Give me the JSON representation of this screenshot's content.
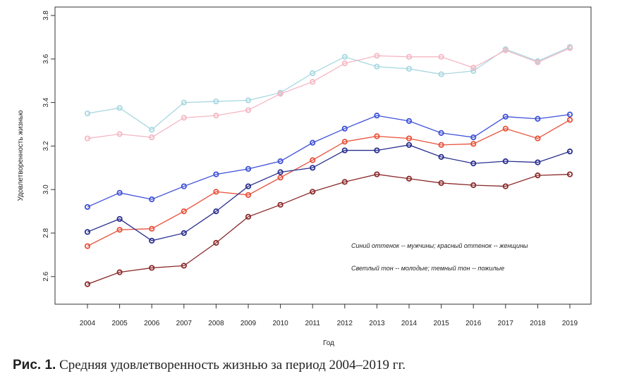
{
  "chart_data": {
    "type": "line",
    "xlabel": "Год",
    "ylabel": "Удовлетворенность жизнью",
    "ylim": [
      2.55,
      3.82
    ],
    "yticks": [
      "2.6",
      "2.8",
      "3.0",
      "3.2",
      "3.4",
      "3.6",
      "3.8"
    ],
    "x": [
      2004,
      2005,
      2006,
      2007,
      2008,
      2009,
      2010,
      2011,
      2012,
      2013,
      2014,
      2015,
      2016,
      2017,
      2018,
      2019
    ],
    "annotations": [
      "Синий оттенок -- мужчины; красный оттенок -- женщины",
      "Светлый тон -- молодые; темный тон -- пожилые"
    ],
    "grid": false,
    "series": [
      {
        "color": "#a8d8e0",
        "values": [
          3.35,
          3.375,
          3.275,
          3.4,
          3.405,
          3.41,
          3.445,
          3.535,
          3.61,
          3.565,
          3.555,
          3.53,
          3.545,
          3.645,
          3.59,
          3.655
        ]
      },
      {
        "color": "#f4b8c4",
        "values": [
          3.235,
          3.255,
          3.24,
          3.33,
          3.34,
          3.365,
          3.44,
          3.495,
          3.58,
          3.615,
          3.61,
          3.61,
          3.56,
          3.64,
          3.585,
          3.65
        ]
      },
      {
        "color": "#3f51d8",
        "values": [
          2.92,
          2.985,
          2.955,
          3.015,
          3.07,
          3.095,
          3.13,
          3.215,
          3.28,
          3.34,
          3.315,
          3.26,
          3.24,
          3.335,
          3.325,
          3.345
        ]
      },
      {
        "color": "#e8503a",
        "values": [
          2.74,
          2.815,
          2.82,
          2.9,
          2.99,
          2.975,
          3.055,
          3.135,
          3.22,
          3.245,
          3.235,
          3.205,
          3.21,
          3.28,
          3.235,
          3.32
        ]
      },
      {
        "color": "#2a2f8f",
        "values": [
          2.805,
          2.865,
          2.765,
          2.8,
          2.9,
          3.015,
          3.08,
          3.1,
          3.18,
          3.18,
          3.205,
          3.15,
          3.12,
          3.13,
          3.125,
          3.175
        ]
      },
      {
        "color": "#8b2a2a",
        "values": [
          2.565,
          2.62,
          2.64,
          2.65,
          2.755,
          2.875,
          2.93,
          2.99,
          3.035,
          3.07,
          3.05,
          3.03,
          3.02,
          3.015,
          3.065,
          3.07
        ]
      }
    ]
  },
  "caption": {
    "label": "Рис. 1.",
    "text": " Средняя удовлетворенность жизнью за период 2004–2019 гг."
  }
}
